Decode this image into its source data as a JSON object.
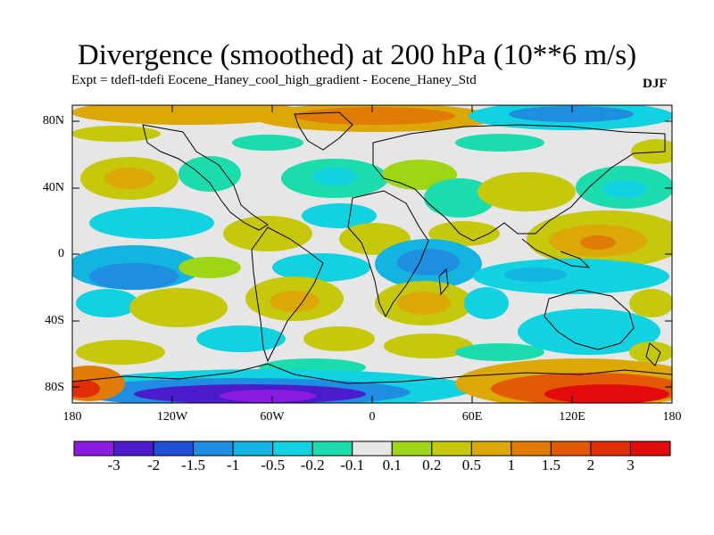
{
  "title": "Divergence (smoothed) at 200 hPa (10**6 m/s)",
  "subtitle": "Expt = tdefl-tdefi  Eocene_Haney_cool_high_gradient - Eocene_Haney_Std",
  "season": "DJF",
  "lat_labels": [
    "80N",
    "40N",
    "0",
    "40S",
    "80S"
  ],
  "lon_labels": [
    "180",
    "120W",
    "60W",
    "0",
    "60E",
    "120E",
    "180"
  ],
  "colorbar": {
    "labels": [
      "-3",
      "-2",
      "-1.5",
      "-1",
      "-0.5",
      "-0.2",
      "-0.1",
      "0.1",
      "0.2",
      "0.5",
      "1",
      "1.5",
      "2",
      "3"
    ],
    "colors": [
      "#8a1ce0",
      "#4a1ccc",
      "#1e4fd6",
      "#1e8ee0",
      "#14b4e0",
      "#10d2e0",
      "#1adcac",
      "#e6e6e6",
      "#9cd614",
      "#c6c80c",
      "#dca808",
      "#e07c06",
      "#e45a04",
      "#e22e06",
      "#e20a0a"
    ]
  },
  "chart_data": {
    "type": "heatmap",
    "title": "Divergence (smoothed) at 200 hPa (10**6 m/s)",
    "lat_range": [
      -90,
      90
    ],
    "lon_range": [
      -180,
      180
    ],
    "levels": [
      -3,
      -2,
      -1.5,
      -1,
      -0.5,
      -0.2,
      -0.1,
      0.1,
      0.2,
      0.5,
      1,
      1.5,
      2,
      3
    ],
    "features": [
      {
        "region": "Southern Ocean 180W-0",
        "approx_lat": -80,
        "approx_lon": -90,
        "value": -2
      },
      {
        "region": "Southern Ocean 60E-180",
        "approx_lat": -80,
        "approx_lon": 130,
        "value": 2
      },
      {
        "region": "Arctic 60W-40E",
        "approx_lat": 82,
        "approx_lon": -10,
        "value": 1
      },
      {
        "region": "Arctic 60E-180",
        "approx_lat": 82,
        "approx_lon": 120,
        "value": -0.5
      },
      {
        "region": "North Pacific 120E-180",
        "approx_lat": 10,
        "approx_lon": 140,
        "value": 1
      },
      {
        "region": "Equatorial Indian Ocean",
        "approx_lat": 0,
        "approx_lon": 40,
        "value": -1
      },
      {
        "region": "Tropical East Pacific",
        "approx_lat": -15,
        "approx_lon": -140,
        "value": -0.5
      },
      {
        "region": "South Atlantic",
        "approx_lat": -25,
        "approx_lon": -30,
        "value": 0.5
      },
      {
        "region": "Southern Indian Ocean",
        "approx_lat": -25,
        "approx_lon": 45,
        "value": 0.5
      },
      {
        "region": "Australia",
        "approx_lat": -45,
        "approx_lon": 130,
        "value": -0.5
      }
    ]
  }
}
